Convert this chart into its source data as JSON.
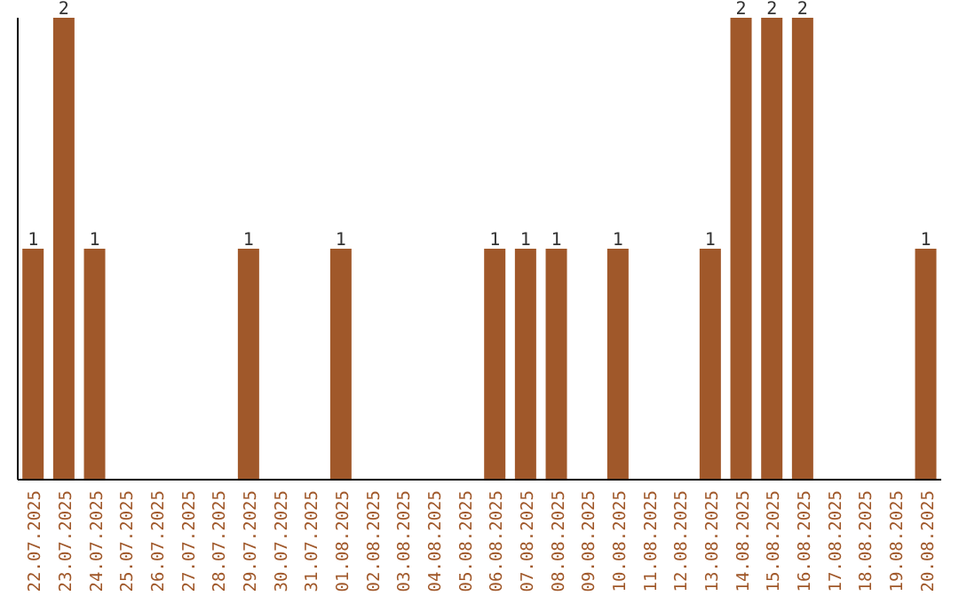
{
  "chart_data": {
    "type": "bar",
    "categories": [
      "22.07.2025",
      "23.07.2025",
      "24.07.2025",
      "25.07.2025",
      "26.07.2025",
      "27.07.2025",
      "28.07.2025",
      "29.07.2025",
      "30.07.2025",
      "31.07.2025",
      "01.08.2025",
      "02.08.2025",
      "03.08.2025",
      "04.08.2025",
      "05.08.2025",
      "06.08.2025",
      "07.08.2025",
      "08.08.2025",
      "09.08.2025",
      "10.08.2025",
      "11.08.2025",
      "12.08.2025",
      "13.08.2025",
      "14.08.2025",
      "15.08.2025",
      "16.08.2025",
      "17.08.2025",
      "18.08.2025",
      "19.08.2025",
      "20.08.2025"
    ],
    "values": [
      1,
      2,
      1,
      0,
      0,
      0,
      0,
      1,
      0,
      0,
      1,
      0,
      0,
      0,
      0,
      1,
      1,
      1,
      0,
      1,
      0,
      0,
      1,
      2,
      2,
      2,
      0,
      0,
      0,
      1
    ],
    "value_labels": [
      "1",
      "2",
      "1",
      null,
      null,
      null,
      null,
      "1",
      null,
      null,
      "1",
      null,
      null,
      null,
      null,
      "1",
      "1",
      "1",
      null,
      "1",
      null,
      null,
      "1",
      "2",
      "2",
      "2",
      null,
      null,
      null,
      "1"
    ],
    "color": "#a0582a",
    "tick_labels": "x"
  }
}
